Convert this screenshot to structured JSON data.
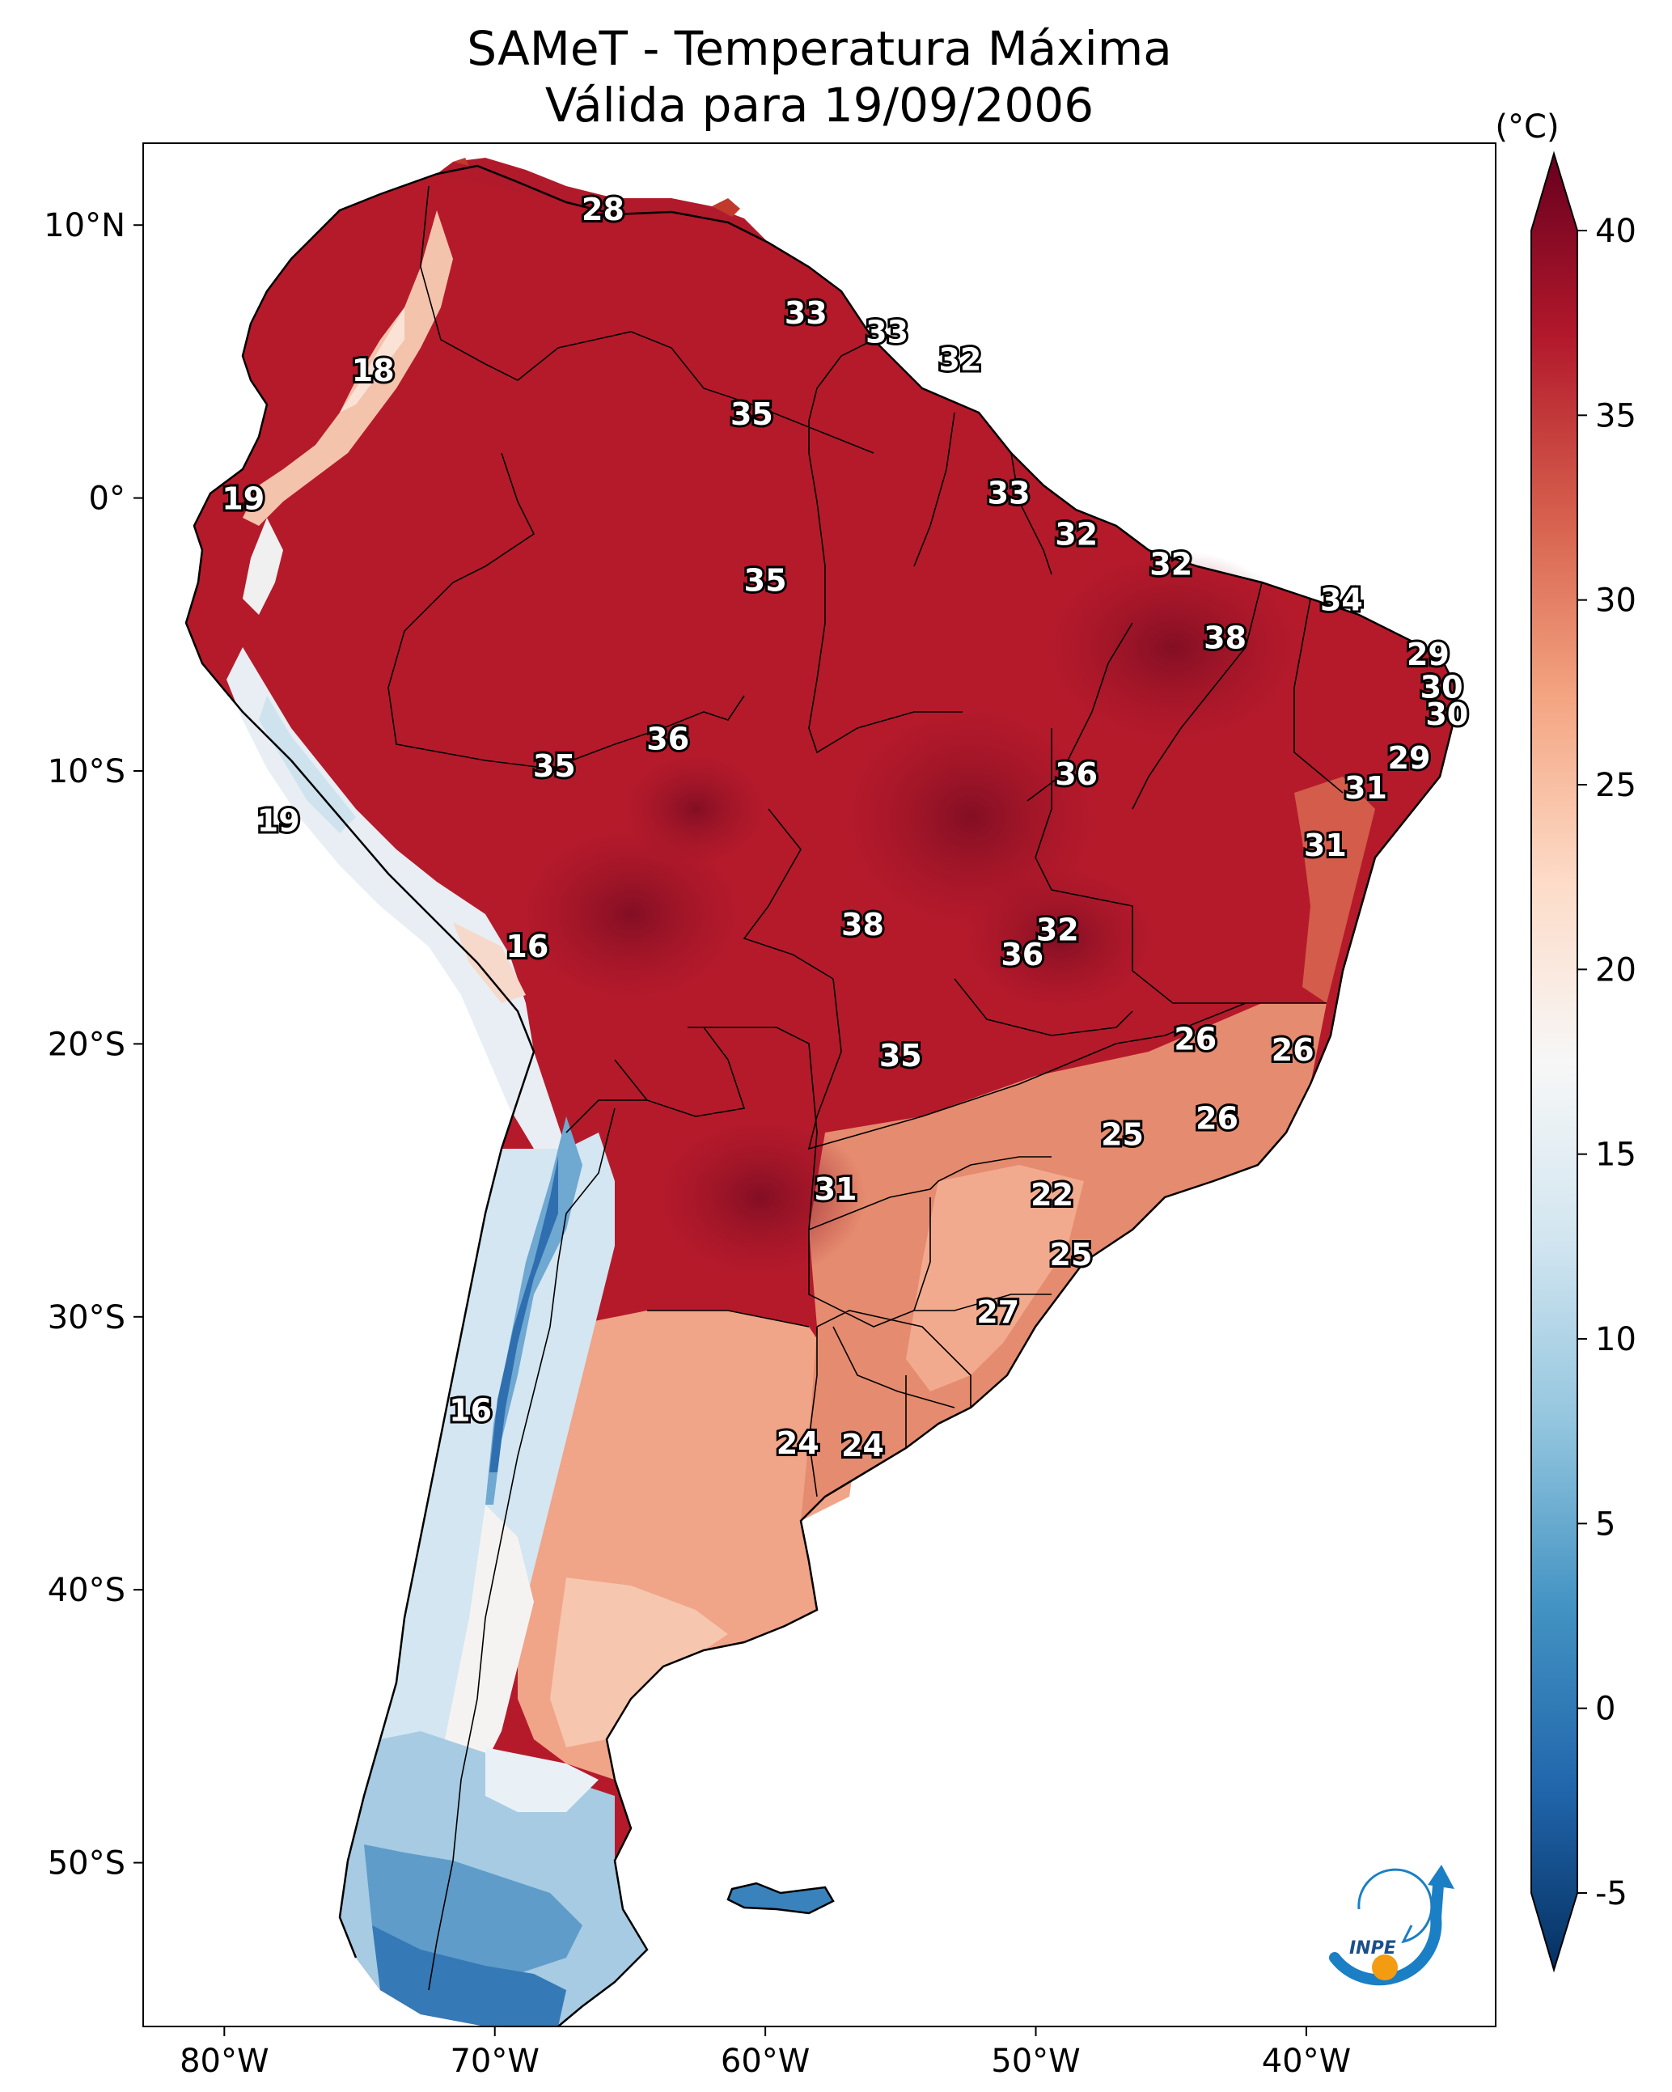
{
  "title": {
    "line1": "SAMeT - Temperatura Máxima",
    "line2": "Válida para 19/09/2006"
  },
  "map": {
    "lon_range": [
      -83,
      -33
    ],
    "lat_range": [
      -56,
      13
    ],
    "lon_ticks": [
      {
        "value": -80,
        "label": "80°W"
      },
      {
        "value": -70,
        "label": "70°W"
      },
      {
        "value": -60,
        "label": "60°W"
      },
      {
        "value": -50,
        "label": "50°W"
      },
      {
        "value": -40,
        "label": "40°W"
      }
    ],
    "lat_ticks": [
      {
        "value": 10,
        "label": "10°N"
      },
      {
        "value": 0,
        "label": "0°"
      },
      {
        "value": -10,
        "label": "10°S"
      },
      {
        "value": -20,
        "label": "20°S"
      },
      {
        "value": -30,
        "label": "30°S"
      },
      {
        "value": -40,
        "label": "40°S"
      },
      {
        "value": -50,
        "label": "50°S"
      }
    ],
    "contour_labels": [
      {
        "text": "28",
        "lon": -66.0,
        "lat": 10.5
      },
      {
        "text": "18",
        "lon": -74.5,
        "lat": 4.6
      },
      {
        "text": "33",
        "lon": -58.5,
        "lat": 6.7
      },
      {
        "text": "33",
        "lon": -55.5,
        "lat": 6.0
      },
      {
        "text": "32",
        "lon": -52.8,
        "lat": 5.0
      },
      {
        "text": "35",
        "lon": -60.5,
        "lat": 3.0
      },
      {
        "text": "19",
        "lon": -79.3,
        "lat": -0.1
      },
      {
        "text": "33",
        "lon": -51.0,
        "lat": 0.1
      },
      {
        "text": "32",
        "lon": -48.5,
        "lat": -1.4
      },
      {
        "text": "32",
        "lon": -45.0,
        "lat": -2.5
      },
      {
        "text": "35",
        "lon": -60.0,
        "lat": -3.1
      },
      {
        "text": "34",
        "lon": -38.7,
        "lat": -3.8
      },
      {
        "text": "38",
        "lon": -43.0,
        "lat": -5.2
      },
      {
        "text": "29",
        "lon": -35.5,
        "lat": -5.8
      },
      {
        "text": "30",
        "lon": -35.0,
        "lat": -7.0
      },
      {
        "text": "30",
        "lon": -34.8,
        "lat": -8.0
      },
      {
        "text": "29",
        "lon": -36.2,
        "lat": -9.6
      },
      {
        "text": "36",
        "lon": -63.6,
        "lat": -8.9
      },
      {
        "text": "35",
        "lon": -67.8,
        "lat": -9.9
      },
      {
        "text": "36",
        "lon": -48.5,
        "lat": -10.2
      },
      {
        "text": "31",
        "lon": -37.8,
        "lat": -10.7
      },
      {
        "text": "19",
        "lon": -78.0,
        "lat": -11.9
      },
      {
        "text": "31",
        "lon": -39.3,
        "lat": -12.8
      },
      {
        "text": "38",
        "lon": -56.4,
        "lat": -15.7
      },
      {
        "text": "32",
        "lon": -49.2,
        "lat": -15.9
      },
      {
        "text": "16",
        "lon": -68.8,
        "lat": -16.5
      },
      {
        "text": "36",
        "lon": -50.5,
        "lat": -16.8
      },
      {
        "text": "26",
        "lon": -44.1,
        "lat": -19.9
      },
      {
        "text": "26",
        "lon": -40.5,
        "lat": -20.3
      },
      {
        "text": "35",
        "lon": -55.0,
        "lat": -20.5
      },
      {
        "text": "26",
        "lon": -43.3,
        "lat": -22.8
      },
      {
        "text": "25",
        "lon": -46.8,
        "lat": -23.4
      },
      {
        "text": "22",
        "lon": -49.4,
        "lat": -25.6
      },
      {
        "text": "31",
        "lon": -57.4,
        "lat": -25.4
      },
      {
        "text": "25",
        "lon": -48.7,
        "lat": -27.8
      },
      {
        "text": "27",
        "lon": -51.4,
        "lat": -29.9
      },
      {
        "text": "16",
        "lon": -70.9,
        "lat": -33.5
      },
      {
        "text": "24",
        "lon": -58.8,
        "lat": -34.7
      },
      {
        "text": "24",
        "lon": -56.4,
        "lat": -34.8
      }
    ]
  },
  "colorbar": {
    "unit": "(°C)",
    "vmin": -5,
    "vmax": 40,
    "ticks": [
      "40",
      "35",
      "30",
      "25",
      "20",
      "15",
      "10",
      "5",
      "0",
      "-5"
    ],
    "colors": [
      "#053061",
      "#2166ac",
      "#4393c3",
      "#92c5de",
      "#d1e5f0",
      "#f7f7f7",
      "#fddbc7",
      "#f4a582",
      "#d6604d",
      "#b2182b",
      "#67001f"
    ]
  },
  "logo": {
    "text": "INPE",
    "arrow_color": "#1a7fc4",
    "dot_color": "#f39c12"
  }
}
